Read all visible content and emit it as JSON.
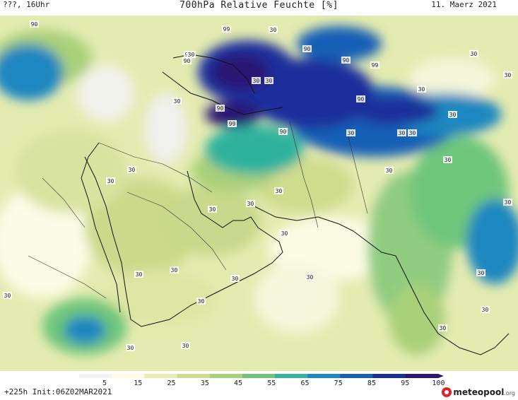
{
  "header": {
    "left": "???, 16Uhr",
    "title": "700hPa Relative Feuchte [%]",
    "date": "11. Maerz 2021"
  },
  "footer": {
    "run_info": "+225h Init:06Z02MAR2021",
    "logo_name": "meteopool",
    "logo_tld": ".org"
  },
  "legend": {
    "ticks": [
      "5",
      "15",
      "25",
      "35",
      "45",
      "55",
      "65",
      "75",
      "85",
      "95",
      "100"
    ],
    "colors": [
      "#f2f2f2",
      "#fdfde6",
      "#e9edb4",
      "#cfdc8e",
      "#a9d07a",
      "#6ec67c",
      "#2fb29e",
      "#1c87c0",
      "#155fb6",
      "#1a2f9b",
      "#2b1673"
    ]
  },
  "contour_labels": [
    "90",
    "99",
    "30",
    "90",
    "30",
    "90",
    "90",
    "99",
    "30",
    "90",
    "90",
    "99",
    "90",
    "30",
    "30",
    "90",
    "30",
    "30",
    "30",
    "30",
    "30",
    "30",
    "30",
    "30",
    "30",
    "30",
    "30",
    "30",
    "30",
    "30",
    "30",
    "30",
    "30",
    "30",
    "30",
    "30",
    "30",
    "30",
    "30",
    "30",
    "30",
    "30",
    "30"
  ]
}
